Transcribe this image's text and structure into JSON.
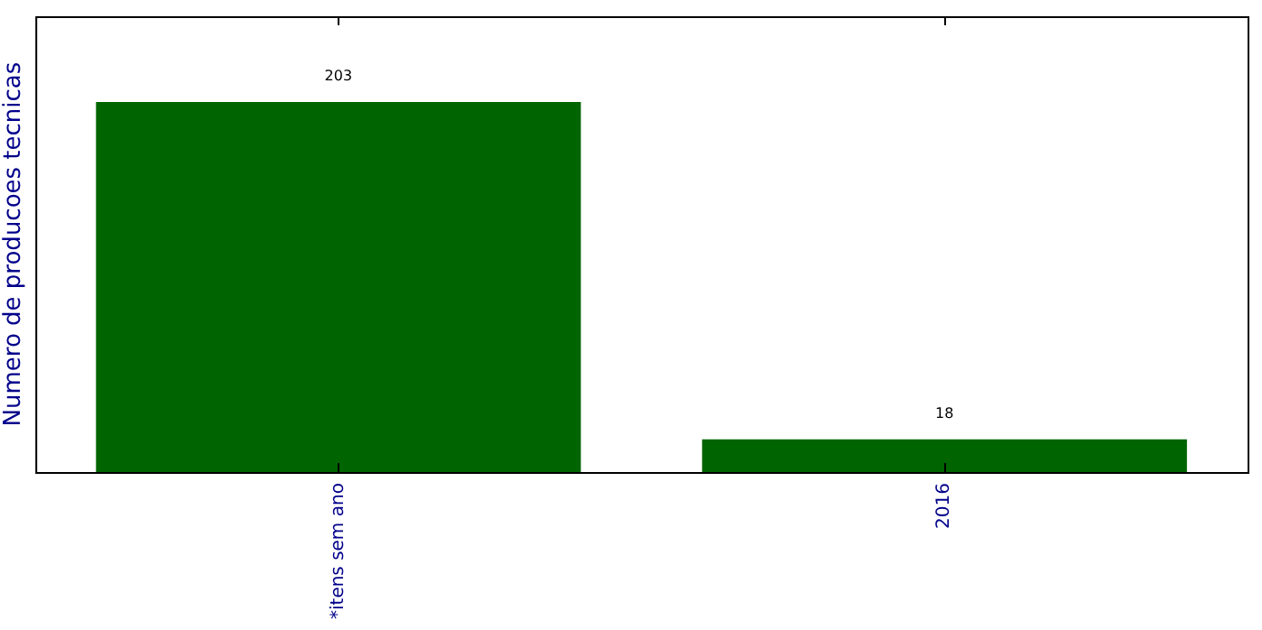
{
  "chart_data": {
    "type": "bar",
    "ylabel": "Numero de producoes tecnicas",
    "categories": [
      "*itens sem ano",
      "2016"
    ],
    "values": [
      203,
      18
    ],
    "color": "#006400",
    "data_labels": true,
    "tick_labels": "x",
    "grid": false,
    "legend": false
  }
}
